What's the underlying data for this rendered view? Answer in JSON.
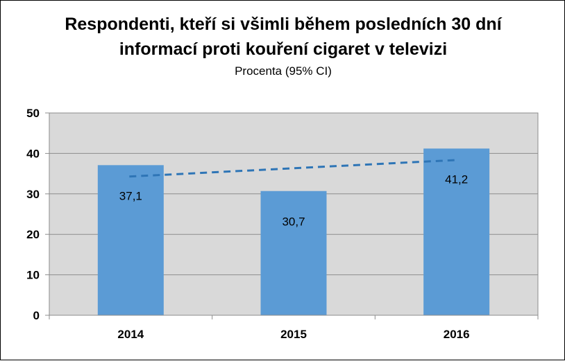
{
  "chart_data": {
    "type": "bar",
    "title_lines": [
      "Respondenti, kteří si všimli během posledních 30 dní",
      "informací proti kouření cigaret v televizi"
    ],
    "subtitle": "Procenta (95% CI)",
    "categories": [
      "2014",
      "2015",
      "2016"
    ],
    "values": [
      37.1,
      30.7,
      41.2
    ],
    "data_labels": [
      "37,1",
      "30,7",
      "41,2"
    ],
    "y_ticks": [
      "0",
      "10",
      "20",
      "30",
      "40",
      "50"
    ],
    "ylim": [
      0,
      50
    ],
    "y_tick_step": 10,
    "grid": true,
    "legend": "none",
    "trendline": {
      "type": "linear",
      "style": "dashed"
    },
    "colors": {
      "bar": "#5b9bd5",
      "trend": "#2e75b6",
      "plot_background": "#d9d9d9",
      "grid": "#8c8c8c"
    }
  }
}
